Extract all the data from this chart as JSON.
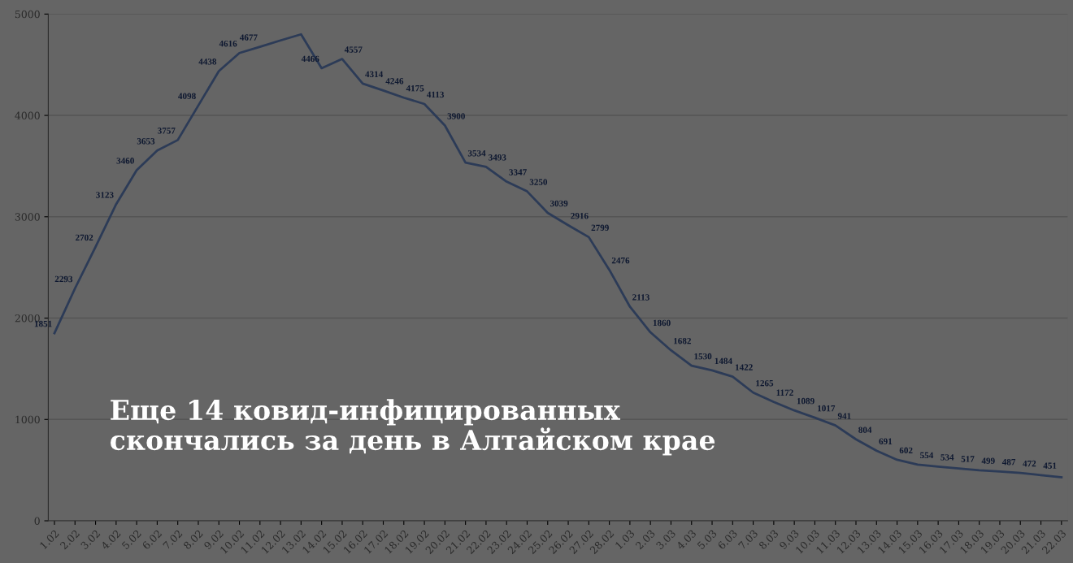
{
  "chart_data": {
    "type": "line",
    "title": "Еще 14 ковид-инфицированных скончались за день в Алтайском крае",
    "categories": [
      "1.02",
      "2.02",
      "3.02",
      "4.02",
      "5.02",
      "6.02",
      "7.02",
      "8.02",
      "9.02",
      "10.02",
      "11.02",
      "12.02",
      "13.02",
      "14.02",
      "15.02",
      "16.02",
      "17.02",
      "18.02",
      "19.02",
      "20.02",
      "21.02",
      "22.02",
      "23.02",
      "24.02",
      "25.02",
      "26.02",
      "27.02",
      "28.02",
      "1.03",
      "2.03",
      "3.03",
      "4.03",
      "5.03",
      "6.03",
      "7.03",
      "8.03",
      "9.03",
      "10.03",
      "11.03",
      "12.03",
      "13.03",
      "14.03",
      "15.03",
      "16.03",
      "17.03",
      "18.03",
      "19.03",
      "20.03",
      "21.03",
      "22.03"
    ],
    "series": [
      {
        "color": "#2c3b57",
        "values": [
          1851,
          2293,
          2702,
          3123,
          3460,
          3653,
          3757,
          4098,
          4438,
          4616,
          4677,
          4740,
          4800,
          4466,
          4557,
          4314,
          4246,
          4175,
          4113,
          3900,
          3534,
          3493,
          3347,
          3250,
          3039,
          2916,
          2799,
          2476,
          2113,
          1860,
          1682,
          1530,
          1484,
          1422,
          1265,
          1172,
          1089,
          1017,
          941,
          804,
          691,
          602,
          554,
          534,
          517,
          499,
          487,
          472,
          451,
          430
        ],
        "value_labels": [
          "1851",
          "2293",
          "2702",
          "3123",
          "3460",
          "3653",
          "3757",
          "4098",
          "4438",
          "4616",
          "4677",
          null,
          null,
          "4466",
          "4557",
          "4314",
          "4246",
          "4175",
          "4113",
          "3900",
          "3534",
          "3493",
          "3347",
          "3250",
          "3039",
          "2916",
          "2799",
          "2476",
          "2113",
          "1860",
          "1682",
          "1530",
          "1484",
          "1422",
          "1265",
          "1172",
          "1089",
          "1017",
          "941",
          "804",
          "691",
          "602",
          "554",
          "534",
          "517",
          "499",
          "487",
          "472",
          "451",
          null
        ]
      }
    ],
    "ylim": [
      0,
      5000
    ],
    "yticks": [
      0,
      1000,
      2000,
      3000,
      4000,
      5000
    ],
    "grid": "y",
    "marker": "none",
    "line_style": "solid"
  }
}
